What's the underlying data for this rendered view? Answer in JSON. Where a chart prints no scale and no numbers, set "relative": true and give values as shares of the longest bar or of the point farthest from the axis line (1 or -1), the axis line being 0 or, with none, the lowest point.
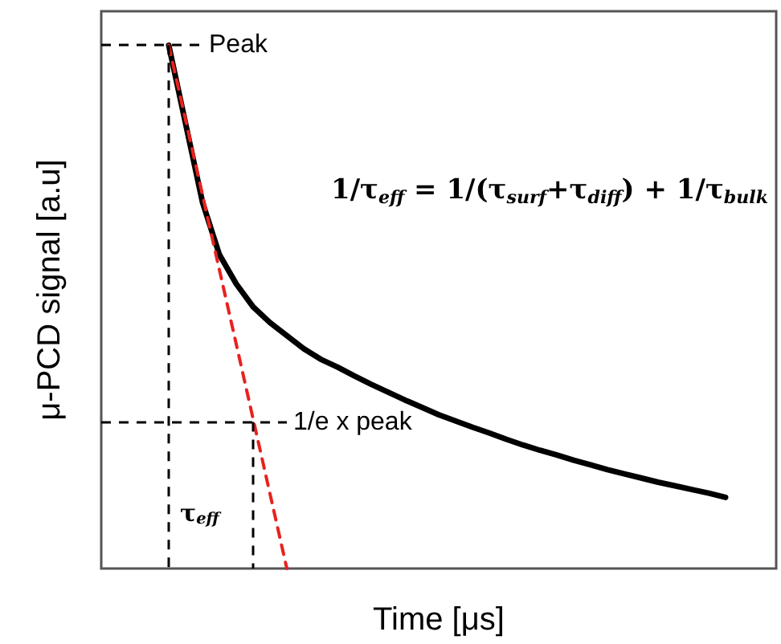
{
  "chart_data": {
    "type": "line",
    "relative": true,
    "xlabel": "Time [μs]",
    "ylabel": "μ-PCD signal [a.u]",
    "categories": [
      null,
      null,
      null,
      null,
      null,
      null,
      null,
      null,
      null,
      null,
      null,
      null,
      null,
      null,
      null,
      null,
      null,
      null,
      null,
      null,
      null,
      null,
      null,
      null,
      null,
      null,
      null,
      null,
      null,
      null,
      null,
      null,
      null,
      null,
      null,
      null,
      null,
      null,
      null,
      null,
      null
    ],
    "tick_labels": false,
    "marker": "none",
    "series": [
      {
        "color": "#000000",
        "line_style": "solid",
        "values": [
          null,
          null,
          null,
          null,
          1.0,
          0.85,
          0.7,
          0.6,
          0.544,
          0.5,
          0.47,
          0.445,
          0.42,
          0.4,
          0.385,
          0.368,
          0.352,
          0.337,
          0.322,
          0.308,
          0.294,
          0.282,
          0.27,
          0.259,
          0.247,
          0.236,
          0.226,
          0.217,
          0.207,
          0.198,
          0.189,
          0.181,
          0.173,
          0.165,
          0.158,
          0.151,
          0.144,
          0.136,
          null,
          null,
          null
        ]
      },
      {
        "color": "#e8221e",
        "line_style": "dashed",
        "values": [
          null,
          null,
          null,
          null,
          1.0,
          0.857,
          0.714,
          0.571,
          0.429,
          0.286,
          0.143,
          0.0,
          null,
          null,
          null,
          null,
          null,
          null,
          null,
          null,
          null,
          null,
          null,
          null,
          null,
          null,
          null,
          null,
          null,
          null,
          null,
          null,
          null,
          null,
          null,
          null,
          null,
          null,
          null,
          null,
          null
        ]
      }
    ],
    "ref_lines": [
      {
        "axis": "y",
        "value": 1.0,
        "label": "Peak",
        "color": "#000000",
        "line_style": "dashed"
      },
      {
        "axis": "y",
        "value": 0.28,
        "label": "1/e x peak",
        "color": "#000000",
        "line_style": "dashed"
      }
    ],
    "annotations": [
      "τ$_{eff}$",
      "1/τ$_{eff}$ = 1/(τ$_{surf}$+τ$_{diff}$) + 1/τ$_{bulk}$"
    ]
  }
}
